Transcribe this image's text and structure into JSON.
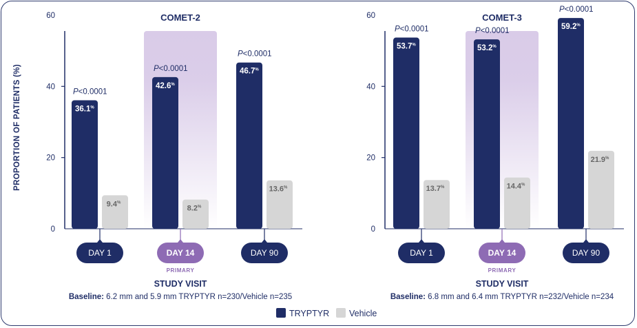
{
  "chart_data": [
    {
      "type": "bar",
      "title": "COMET-2",
      "ylabel": "PROPORTION OF PATIENTS (%)",
      "xlabel": "STUDY VISIT",
      "ylim": [
        0,
        60
      ],
      "yticks": [
        0,
        20,
        40,
        60
      ],
      "categories": [
        "DAY 1",
        "DAY 14",
        "DAY 90"
      ],
      "category_sublabels": [
        "",
        "PRIMARY",
        ""
      ],
      "highlight_category": "DAY 14",
      "series": [
        {
          "name": "TRYPTYR",
          "values": [
            36.1,
            42.6,
            46.7
          ],
          "labels": [
            "36.1",
            "42.6",
            "46.7"
          ],
          "color": "#1f2d66"
        },
        {
          "name": "Vehicle",
          "values": [
            9.4,
            8.2,
            13.6
          ],
          "labels": [
            "9.4",
            "8.2",
            "13.6"
          ],
          "color": "#d6d6d6"
        }
      ],
      "pvalue_prefix": "P",
      "pvalues": [
        "<0.0001",
        "<0.0001",
        "<0.0001"
      ],
      "percent_sign": "%",
      "baseline_label": "Baseline:",
      "baseline_text": "6.2 mm and 5.9 mm",
      "n_text": "TRYPTYR n=230/Vehicle n=235"
    },
    {
      "type": "bar",
      "title": "COMET-3",
      "xlabel": "STUDY VISIT",
      "ylim": [
        0,
        60
      ],
      "yticks": [
        0,
        20,
        40,
        60
      ],
      "categories": [
        "DAY 1",
        "DAY 14",
        "DAY 90"
      ],
      "category_sublabels": [
        "",
        "PRIMARY",
        ""
      ],
      "highlight_category": "DAY 14",
      "series": [
        {
          "name": "TRYPTYR",
          "values": [
            53.7,
            53.2,
            59.2
          ],
          "labels": [
            "53.7",
            "53.2",
            "59.2"
          ],
          "color": "#1f2d66"
        },
        {
          "name": "Vehicle",
          "values": [
            13.7,
            14.4,
            21.9
          ],
          "labels": [
            "13.7",
            "14.4",
            "21.9"
          ],
          "color": "#d6d6d6"
        }
      ],
      "pvalue_prefix": "P",
      "pvalues": [
        "<0.0001",
        "<0.0001",
        "<0.0001"
      ],
      "percent_sign": "%",
      "baseline_label": "Baseline:",
      "baseline_text": "6.8 mm and 6.4 mm",
      "n_text": "TRYPTYR n=232/Vehicle n=234"
    }
  ],
  "legend": {
    "placement": "bottom-center",
    "items": [
      {
        "label": "TRYPTYR",
        "color": "#1f2d66"
      },
      {
        "label": "Vehicle",
        "color": "#d6d6d6"
      }
    ]
  },
  "colors": {
    "highlight": "#8e6bb4",
    "highlight_band": "#d9cbe8",
    "text": "#1f2d66",
    "frame": "#2e3a6e"
  }
}
